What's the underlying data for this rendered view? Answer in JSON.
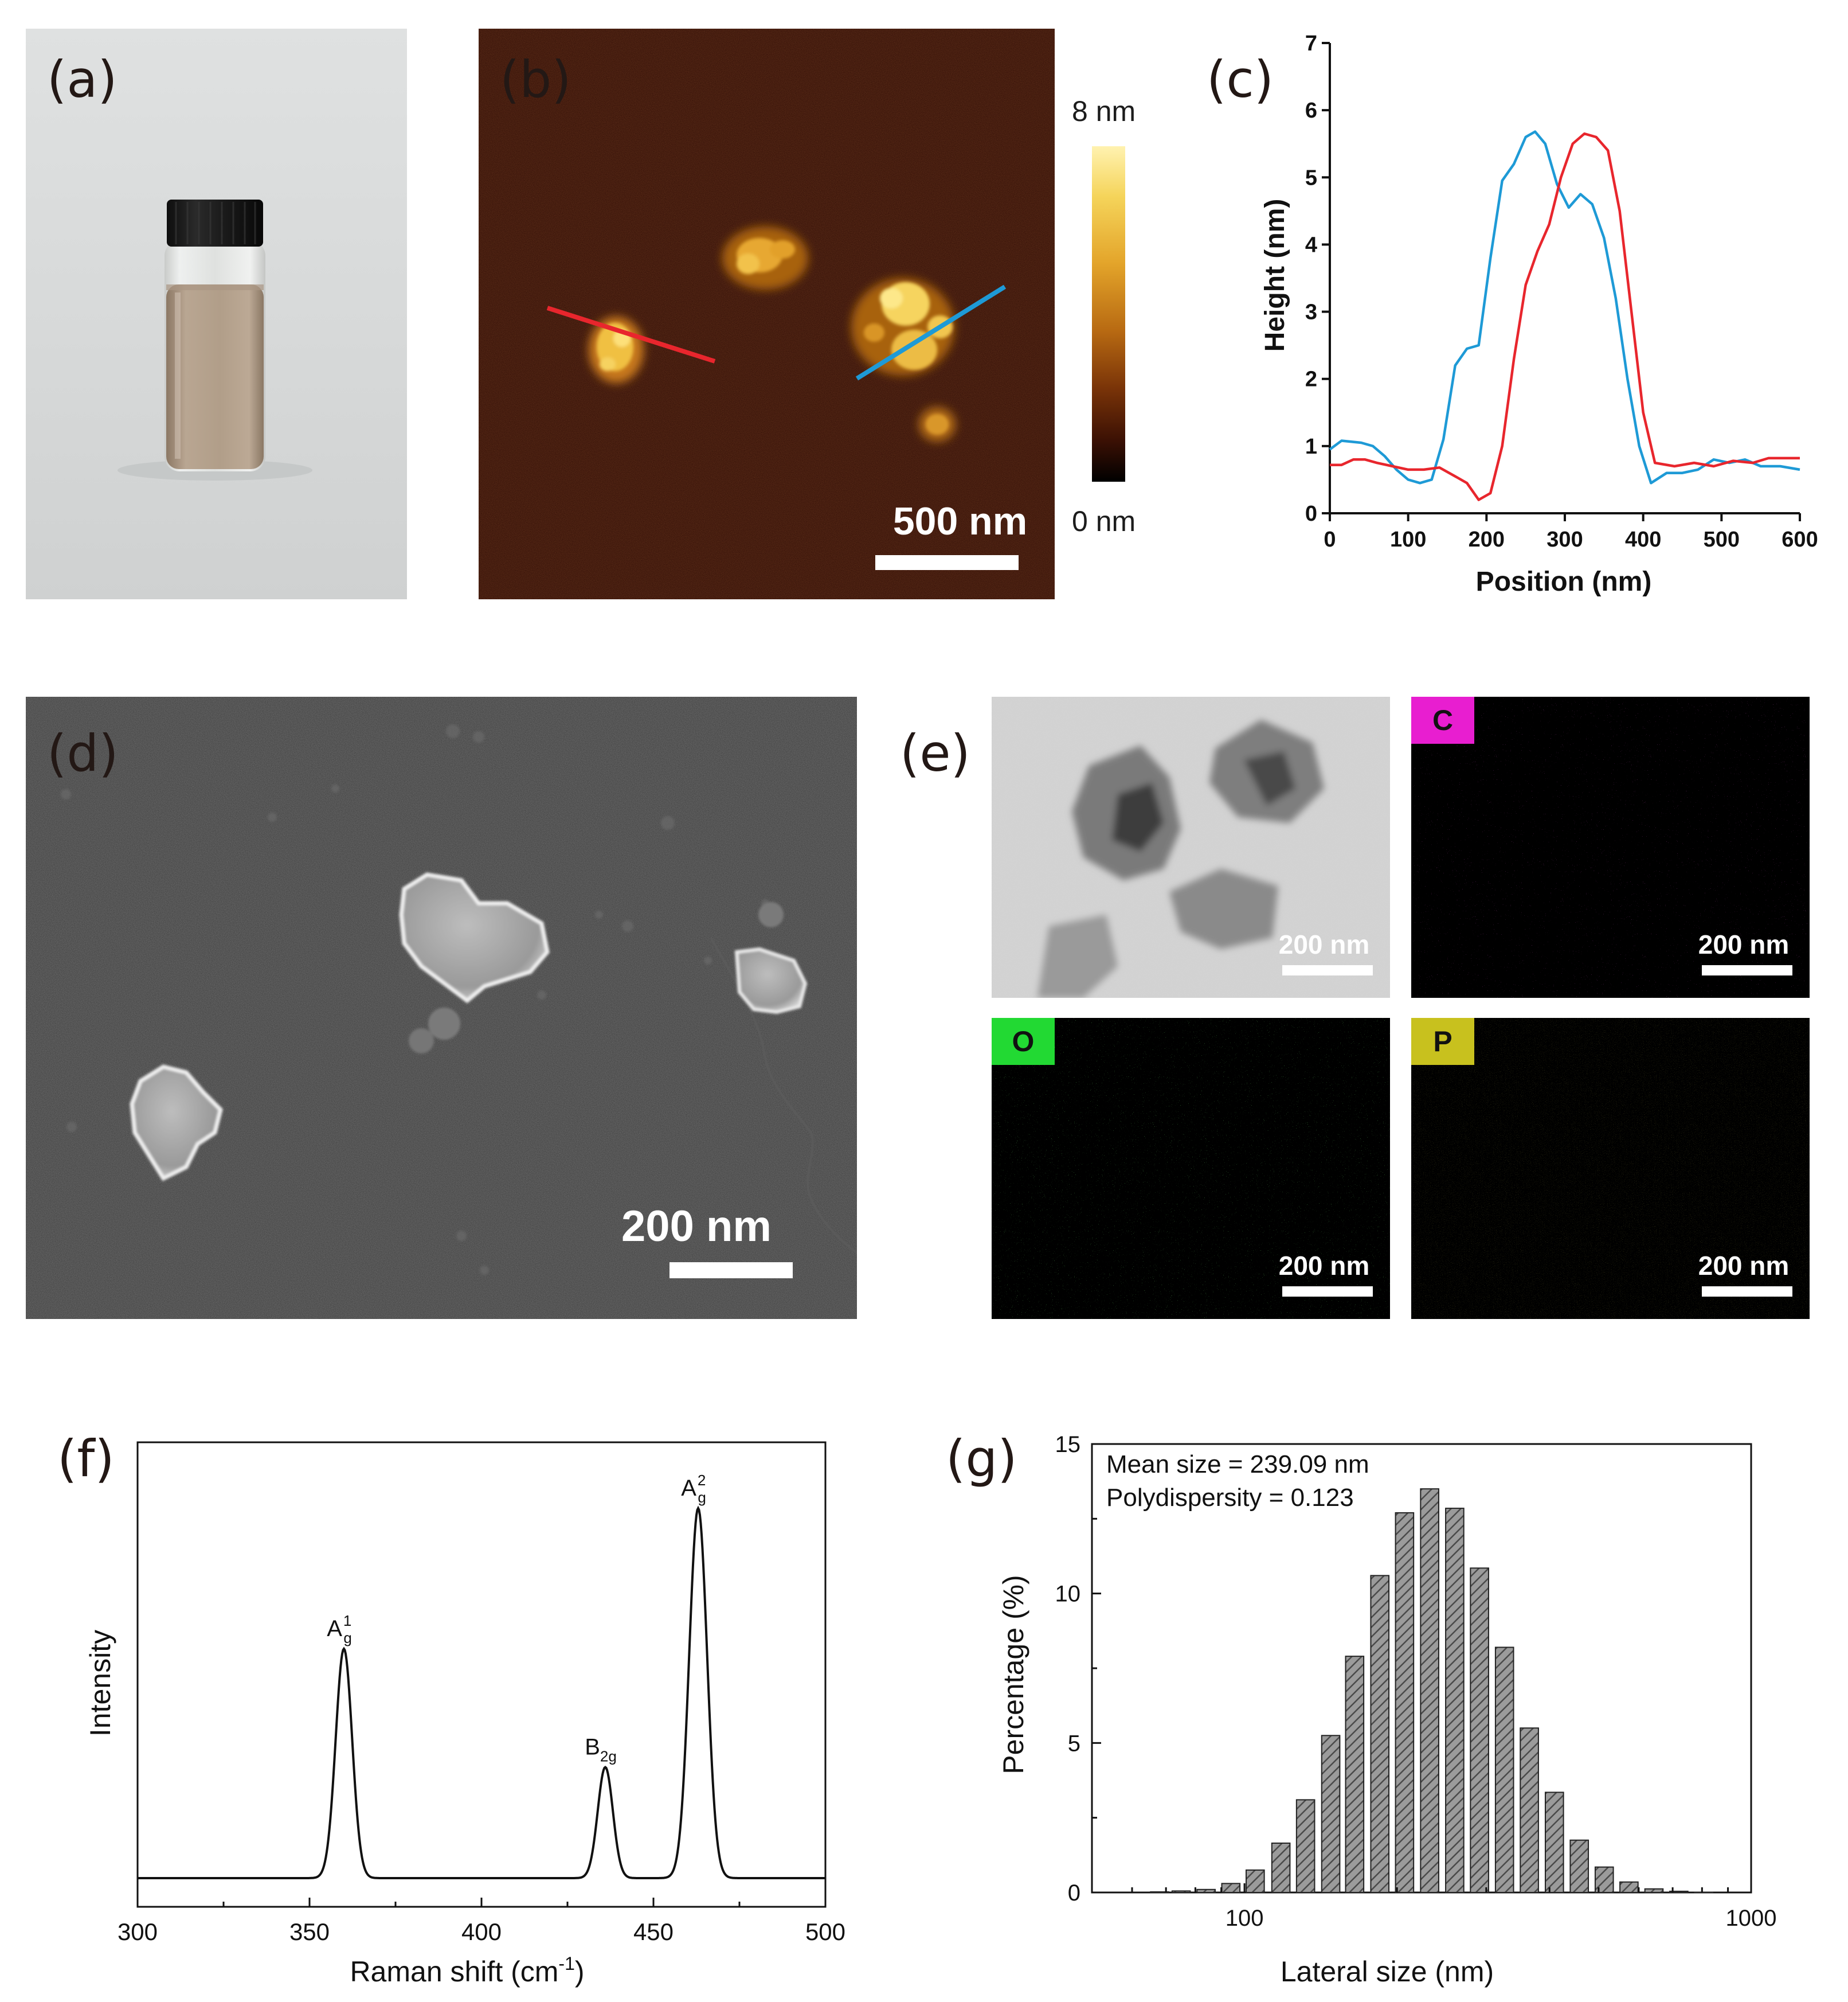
{
  "panels": {
    "a": {
      "label": "(a)"
    },
    "b": {
      "label": "(b)",
      "colorbar_max": "8 nm",
      "colorbar_min": "0 nm",
      "scalebar": "500 nm",
      "colors": {
        "profile_red": "#e8262d",
        "profile_blue": "#1e9ad6"
      }
    },
    "c": {
      "label": "(c)"
    },
    "d": {
      "label": "(d)",
      "scalebar": "200 nm"
    },
    "e": {
      "label": "(e)",
      "tiles": [
        {
          "element": "",
          "scalebar": "200 nm",
          "tag_color": ""
        },
        {
          "element": "C",
          "scalebar": "200 nm",
          "tag_color": "#e81ed0"
        },
        {
          "element": "O",
          "scalebar": "200 nm",
          "tag_color": "#22d933"
        },
        {
          "element": "P",
          "scalebar": "200 nm",
          "tag_color": "#c8c11e"
        }
      ]
    },
    "f": {
      "label": "(f)"
    },
    "g": {
      "label": "(g)",
      "annotation_1": "Mean size = 239.09 nm",
      "annotation_2": "Polydispersity = 0.123"
    }
  },
  "chart_data": [
    {
      "panel": "c",
      "type": "line",
      "title": "",
      "xlabel": "Position (nm)",
      "ylabel": "Height (nm)",
      "xlim": [
        0,
        600
      ],
      "ylim": [
        0,
        7
      ],
      "xticks": [
        "0",
        "100",
        "200",
        "300",
        "400",
        "500",
        "600"
      ],
      "yticks": [
        "0",
        "1",
        "2",
        "3",
        "4",
        "5",
        "6",
        "7"
      ],
      "series": [
        {
          "color": "#1e9ad6",
          "x": [
            0,
            15,
            40,
            55,
            70,
            85,
            100,
            115,
            130,
            145,
            160,
            175,
            190,
            205,
            220,
            235,
            250,
            262,
            275,
            290,
            305,
            320,
            335,
            350,
            365,
            380,
            395,
            410,
            430,
            450,
            470,
            490,
            510,
            530,
            550,
            575,
            600
          ],
          "y": [
            0.95,
            1.08,
            1.05,
            1.0,
            0.85,
            0.65,
            0.5,
            0.45,
            0.5,
            1.1,
            2.2,
            2.45,
            2.5,
            3.8,
            4.95,
            5.2,
            5.6,
            5.68,
            5.5,
            4.9,
            4.55,
            4.75,
            4.6,
            4.1,
            3.2,
            2.0,
            1.0,
            0.45,
            0.6,
            0.6,
            0.65,
            0.8,
            0.75,
            0.8,
            0.7,
            0.7,
            0.65
          ]
        },
        {
          "color": "#e8262d",
          "x": [
            0,
            15,
            30,
            45,
            60,
            80,
            100,
            120,
            140,
            160,
            175,
            190,
            205,
            220,
            235,
            250,
            265,
            280,
            295,
            310,
            325,
            340,
            355,
            370,
            385,
            400,
            415,
            440,
            465,
            490,
            515,
            540,
            560,
            580,
            600
          ],
          "y": [
            0.72,
            0.72,
            0.8,
            0.8,
            0.75,
            0.7,
            0.65,
            0.65,
            0.68,
            0.55,
            0.45,
            0.2,
            0.3,
            1.0,
            2.3,
            3.4,
            3.9,
            4.3,
            5.0,
            5.5,
            5.65,
            5.6,
            5.4,
            4.5,
            3.0,
            1.5,
            0.75,
            0.7,
            0.75,
            0.7,
            0.78,
            0.75,
            0.82,
            0.82,
            0.82
          ]
        }
      ]
    },
    {
      "panel": "f",
      "type": "line",
      "title": "",
      "xlabel": "Raman shift (cm",
      "xlabel_sup": "-1",
      "xlabel_end": ")",
      "ylabel": "Intensity",
      "xlim": [
        300,
        500
      ],
      "xticks": [
        "300",
        "350",
        "400",
        "450",
        "500"
      ],
      "baseline": 0.0,
      "peaks": [
        {
          "position": 360,
          "height": 0.62,
          "width": 2.4,
          "label": "A",
          "sub": "g",
          "sup": "1"
        },
        {
          "position": 436,
          "height": 0.3,
          "width": 2.2,
          "label": "B",
          "sub": "2g",
          "sup": ""
        },
        {
          "position": 463,
          "height": 1.0,
          "width": 2.6,
          "label": "A",
          "sub": "g",
          "sup": "2"
        }
      ]
    },
    {
      "panel": "g",
      "type": "bar",
      "title": "",
      "xlabel": "Lateral size (nm)",
      "ylabel": "Percentage (%)",
      "xscale": "log",
      "xlim": [
        50,
        1000
      ],
      "ylim": [
        0,
        15
      ],
      "xticks": [
        "100",
        "1000"
      ],
      "yticks": [
        "0",
        "5",
        "10",
        "15"
      ],
      "x": [
        68,
        75,
        84,
        94,
        105,
        118,
        132,
        148,
        165,
        185,
        207,
        232,
        260,
        291,
        326,
        365,
        409,
        458,
        513,
        574,
        643,
        720,
        806
      ],
      "values": [
        0.02,
        0.05,
        0.1,
        0.3,
        0.75,
        1.65,
        3.1,
        5.25,
        7.9,
        10.6,
        12.7,
        13.5,
        12.85,
        10.85,
        8.2,
        5.5,
        3.35,
        1.75,
        0.85,
        0.35,
        0.12,
        0.04,
        0.01
      ]
    }
  ]
}
